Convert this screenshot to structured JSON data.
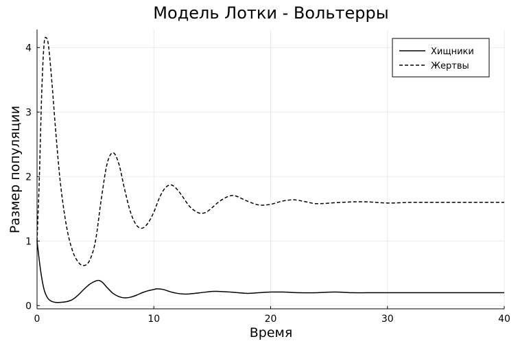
{
  "chart_data": {
    "type": "line",
    "title": "Модель Лотки - Вольтерры",
    "xlabel": "Время",
    "ylabel": "Размер популяции",
    "xlim": [
      0,
      40
    ],
    "ylim": [
      -0.05,
      4.28
    ],
    "xticks": [
      0,
      10,
      20,
      30,
      40
    ],
    "yticks": [
      0,
      1,
      2,
      3,
      4
    ],
    "grid": true,
    "legend_position": "top-right",
    "series": [
      {
        "name": "Хищники",
        "style": "solid",
        "x": [
          0,
          0.3,
          0.6,
          0.9,
          1.2,
          1.6,
          2.0,
          2.5,
          3.0,
          3.5,
          4.0,
          4.5,
          5.0,
          5.3,
          5.6,
          6.0,
          6.5,
          7.0,
          7.5,
          8.0,
          8.5,
          9.0,
          9.5,
          10.0,
          10.3,
          10.8,
          11.5,
          12.0,
          12.5,
          13.0,
          14.0,
          15.0,
          15.5,
          16.5,
          18.0,
          19.0,
          20.0,
          21.0,
          22.5,
          24.0,
          25.5,
          27.0,
          29.0,
          31.0,
          33.0,
          35.0,
          37.0,
          40.0
        ],
        "y": [
          1.0,
          0.55,
          0.25,
          0.12,
          0.07,
          0.05,
          0.05,
          0.06,
          0.09,
          0.16,
          0.25,
          0.33,
          0.38,
          0.39,
          0.36,
          0.28,
          0.19,
          0.14,
          0.12,
          0.13,
          0.16,
          0.2,
          0.23,
          0.25,
          0.26,
          0.25,
          0.21,
          0.19,
          0.18,
          0.18,
          0.2,
          0.22,
          0.22,
          0.21,
          0.19,
          0.2,
          0.21,
          0.21,
          0.2,
          0.2,
          0.21,
          0.2,
          0.2,
          0.2,
          0.2,
          0.2,
          0.2,
          0.2
        ]
      },
      {
        "name": "Жертвы",
        "style": "dashed",
        "x": [
          0,
          0.2,
          0.4,
          0.6,
          0.8,
          1.0,
          1.3,
          1.6,
          2.0,
          2.5,
          3.0,
          3.5,
          4.0,
          4.5,
          5.0,
          5.5,
          6.0,
          6.5,
          7.0,
          7.5,
          8.0,
          8.5,
          9.0,
          9.5,
          10.0,
          10.5,
          11.0,
          11.5,
          12.0,
          12.5,
          13.0,
          13.5,
          14.0,
          14.5,
          15.0,
          15.5,
          16.0,
          16.5,
          17.0,
          18.0,
          19.0,
          20.0,
          21.0,
          22.0,
          23.0,
          24.0,
          26.0,
          28.0,
          30.0,
          32.0,
          34.0,
          36.0,
          38.0,
          40.0
        ],
        "y": [
          1.0,
          2.0,
          3.3,
          4.05,
          4.15,
          4.0,
          3.4,
          2.7,
          1.9,
          1.25,
          0.87,
          0.68,
          0.62,
          0.7,
          1.0,
          1.65,
          2.2,
          2.37,
          2.2,
          1.8,
          1.45,
          1.25,
          1.2,
          1.28,
          1.45,
          1.68,
          1.83,
          1.87,
          1.8,
          1.68,
          1.55,
          1.47,
          1.43,
          1.45,
          1.52,
          1.6,
          1.66,
          1.7,
          1.7,
          1.62,
          1.56,
          1.57,
          1.62,
          1.64,
          1.61,
          1.58,
          1.6,
          1.61,
          1.59,
          1.6,
          1.6,
          1.6,
          1.6,
          1.6
        ]
      }
    ]
  }
}
